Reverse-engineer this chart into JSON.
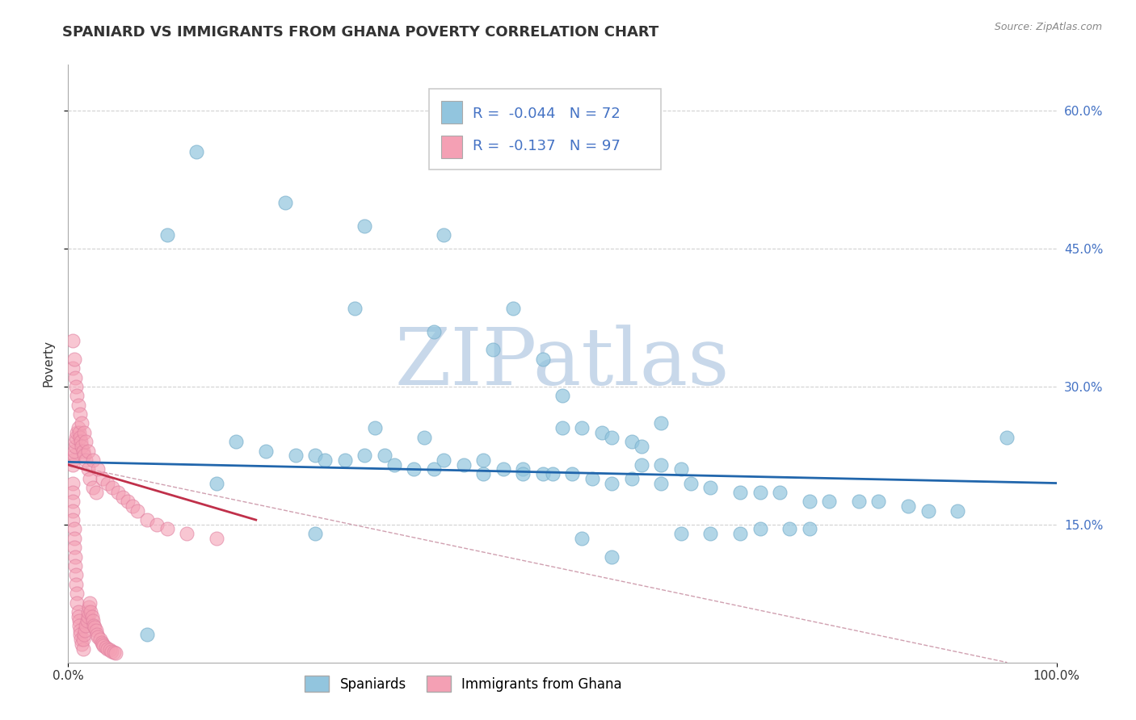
{
  "title": "SPANIARD VS IMMIGRANTS FROM GHANA POVERTY CORRELATION CHART",
  "source": "Source: ZipAtlas.com",
  "ylabel": "Poverty",
  "xlim": [
    0,
    1.0
  ],
  "ylim": [
    0,
    0.65
  ],
  "yticks": [
    0.15,
    0.3,
    0.45,
    0.6
  ],
  "ytick_labels": [
    "15.0%",
    "30.0%",
    "45.0%",
    "60.0%"
  ],
  "xticks": [
    0.0,
    1.0
  ],
  "xtick_labels": [
    "0.0%",
    "100.0%"
  ],
  "r1_text": "R =  -0.044",
  "n1_text": "N = 72",
  "r2_text": "R =  -0.137",
  "n2_text": "N = 97",
  "legend_label1": "Spaniards",
  "legend_label2": "Immigrants from Ghana",
  "blue_color": "#92c5de",
  "pink_color": "#f4a0b4",
  "blue_line_color": "#2166ac",
  "pink_line_color": "#c0304a",
  "dash_line_color": "#d0a0b0",
  "watermark_color": "#c8d8ea",
  "background_color": "#ffffff",
  "grid_color": "#cccccc",
  "blue_scatter_x": [
    0.13,
    0.22,
    0.1,
    0.3,
    0.29,
    0.38,
    0.37,
    0.45,
    0.43,
    0.48,
    0.5,
    0.5,
    0.52,
    0.54,
    0.55,
    0.57,
    0.58,
    0.58,
    0.6,
    0.62,
    0.17,
    0.2,
    0.23,
    0.25,
    0.26,
    0.28,
    0.3,
    0.32,
    0.33,
    0.35,
    0.37,
    0.38,
    0.4,
    0.42,
    0.44,
    0.46,
    0.48,
    0.49,
    0.51,
    0.53,
    0.55,
    0.57,
    0.6,
    0.63,
    0.65,
    0.68,
    0.7,
    0.72,
    0.75,
    0.77,
    0.8,
    0.82,
    0.85,
    0.87,
    0.9,
    0.62,
    0.65,
    0.68,
    0.7,
    0.73,
    0.75,
    0.52,
    0.46,
    0.42,
    0.36,
    0.31,
    0.55,
    0.6,
    0.95,
    0.25,
    0.15,
    0.08
  ],
  "blue_scatter_y": [
    0.555,
    0.5,
    0.465,
    0.475,
    0.385,
    0.465,
    0.36,
    0.385,
    0.34,
    0.33,
    0.29,
    0.255,
    0.255,
    0.25,
    0.245,
    0.24,
    0.235,
    0.215,
    0.215,
    0.21,
    0.24,
    0.23,
    0.225,
    0.225,
    0.22,
    0.22,
    0.225,
    0.225,
    0.215,
    0.21,
    0.21,
    0.22,
    0.215,
    0.205,
    0.21,
    0.21,
    0.205,
    0.205,
    0.205,
    0.2,
    0.195,
    0.2,
    0.195,
    0.195,
    0.19,
    0.185,
    0.185,
    0.185,
    0.175,
    0.175,
    0.175,
    0.175,
    0.17,
    0.165,
    0.165,
    0.14,
    0.14,
    0.14,
    0.145,
    0.145,
    0.145,
    0.135,
    0.205,
    0.22,
    0.245,
    0.255,
    0.115,
    0.26,
    0.245,
    0.14,
    0.195,
    0.03
  ],
  "pink_scatter_x": [
    0.005,
    0.005,
    0.005,
    0.005,
    0.005,
    0.006,
    0.006,
    0.006,
    0.007,
    0.007,
    0.008,
    0.008,
    0.009,
    0.009,
    0.01,
    0.01,
    0.011,
    0.011,
    0.012,
    0.012,
    0.013,
    0.014,
    0.015,
    0.015,
    0.016,
    0.017,
    0.018,
    0.019,
    0.02,
    0.02,
    0.021,
    0.022,
    0.023,
    0.024,
    0.025,
    0.026,
    0.027,
    0.028,
    0.029,
    0.03,
    0.032,
    0.034,
    0.035,
    0.036,
    0.038,
    0.04,
    0.042,
    0.044,
    0.046,
    0.048,
    0.005,
    0.005,
    0.006,
    0.006,
    0.007,
    0.007,
    0.008,
    0.009,
    0.01,
    0.011,
    0.012,
    0.013,
    0.014,
    0.015,
    0.016,
    0.018,
    0.02,
    0.022,
    0.025,
    0.028,
    0.005,
    0.005,
    0.006,
    0.007,
    0.008,
    0.009,
    0.01,
    0.012,
    0.014,
    0.016,
    0.018,
    0.02,
    0.025,
    0.03,
    0.035,
    0.04,
    0.045,
    0.05,
    0.055,
    0.06,
    0.065,
    0.07,
    0.08,
    0.09,
    0.1,
    0.12,
    0.15
  ],
  "pink_scatter_y": [
    0.195,
    0.185,
    0.175,
    0.165,
    0.155,
    0.145,
    0.135,
    0.125,
    0.115,
    0.105,
    0.095,
    0.085,
    0.075,
    0.065,
    0.055,
    0.05,
    0.045,
    0.04,
    0.035,
    0.03,
    0.025,
    0.02,
    0.015,
    0.025,
    0.03,
    0.035,
    0.04,
    0.045,
    0.05,
    0.055,
    0.06,
    0.065,
    0.055,
    0.05,
    0.045,
    0.04,
    0.038,
    0.035,
    0.03,
    0.028,
    0.025,
    0.022,
    0.02,
    0.018,
    0.016,
    0.015,
    0.014,
    0.012,
    0.011,
    0.01,
    0.22,
    0.215,
    0.225,
    0.23,
    0.235,
    0.24,
    0.245,
    0.25,
    0.255,
    0.25,
    0.245,
    0.24,
    0.235,
    0.23,
    0.225,
    0.22,
    0.21,
    0.2,
    0.19,
    0.185,
    0.32,
    0.35,
    0.33,
    0.31,
    0.3,
    0.29,
    0.28,
    0.27,
    0.26,
    0.25,
    0.24,
    0.23,
    0.22,
    0.21,
    0.2,
    0.195,
    0.19,
    0.185,
    0.18,
    0.175,
    0.17,
    0.165,
    0.155,
    0.15,
    0.145,
    0.14,
    0.135
  ],
  "blue_trend_x": [
    0.0,
    1.0
  ],
  "blue_trend_y": [
    0.218,
    0.195
  ],
  "pink_trend_x": [
    0.0,
    0.19
  ],
  "pink_trend_y": [
    0.215,
    0.155
  ],
  "dash_trend_x": [
    0.0,
    0.95
  ],
  "dash_trend_y": [
    0.215,
    0.0
  ],
  "title_fontsize": 13,
  "axis_label_fontsize": 11,
  "tick_fontsize": 11,
  "legend_fontsize": 13
}
